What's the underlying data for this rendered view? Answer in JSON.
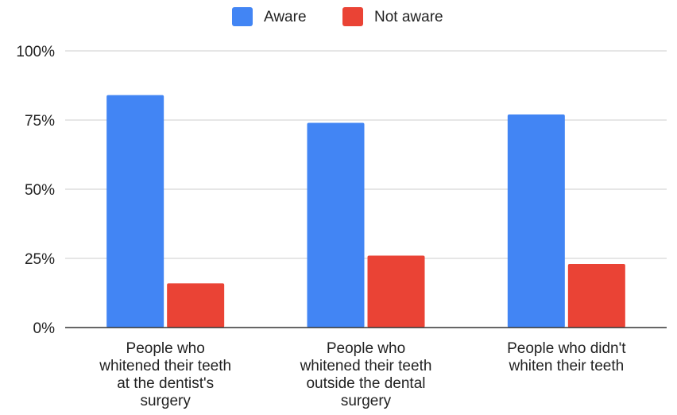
{
  "chart_data": {
    "type": "bar",
    "title": "",
    "xlabel": "",
    "ylabel": "",
    "ylim": [
      0,
      100
    ],
    "yticks": [
      "0%",
      "25%",
      "50%",
      "75%",
      "100%"
    ],
    "grid": true,
    "legend_position": "top",
    "categories": [
      [
        "People who",
        "whitened their teeth",
        "at the dentist's",
        "surgery"
      ],
      [
        "People who",
        "whitened their teeth",
        "outside the dental",
        "surgery"
      ],
      [
        "People who didn't",
        "whiten their teeth"
      ]
    ],
    "series": [
      {
        "name": "Aware",
        "color": "#4285f4",
        "values": [
          84,
          74,
          77
        ]
      },
      {
        "name": "Not aware",
        "color": "#ea4335",
        "values": [
          16,
          26,
          23
        ]
      }
    ]
  }
}
